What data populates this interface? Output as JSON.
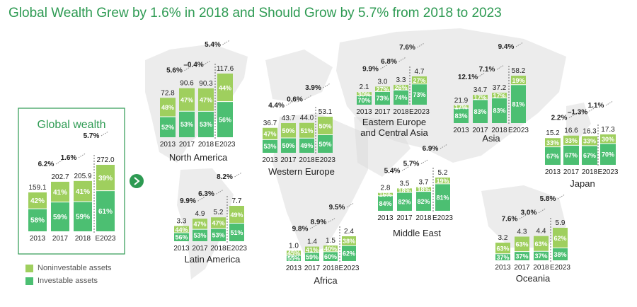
{
  "title": "Global Wealth Grew by 1.6% in 2018 and Should Grow by 5.7% from 2018 to 2023",
  "global_panel_title": "Global wealth",
  "colors": {
    "title": "#2d9a52",
    "investable": "#4cbf72",
    "noninvestable": "#9fcf5e",
    "panel_border": "#2d9a52",
    "map": "#dcdcdc",
    "arrow_button": "#2d9a52",
    "text": "#222222"
  },
  "legend": {
    "noninvestable_label": "Noninvestable assets",
    "investable_label": "Investable assets"
  },
  "chart_data": [
    {
      "type": "bar",
      "name": "Global wealth",
      "categories": [
        "2013",
        "2017",
        "2018",
        "E2023"
      ],
      "totals": [
        "159.1",
        "202.7",
        "205.9",
        "272.0"
      ],
      "series": [
        {
          "name": "Investable assets",
          "values": [
            "58%",
            "59%",
            "59%",
            "61%"
          ]
        },
        {
          "name": "Noninvestable assets",
          "values": [
            "42%",
            "41%",
            "41%",
            "39%"
          ]
        }
      ],
      "growth": [
        "6.2%",
        "1.6%",
        "5.7%"
      ]
    },
    {
      "type": "bar",
      "name": "North America",
      "categories": [
        "2013",
        "2017",
        "2018",
        "E2023"
      ],
      "totals": [
        "72.8",
        "90.6",
        "90.3",
        "117.6"
      ],
      "series": [
        {
          "name": "Investable assets",
          "values": [
            "52%",
            "53%",
            "53%",
            "56%"
          ]
        },
        {
          "name": "Noninvestable assets",
          "values": [
            "48%",
            "47%",
            "47%",
            "44%"
          ]
        }
      ],
      "growth": [
        "5.6%",
        "–0.4%",
        "5.4%"
      ]
    },
    {
      "type": "bar",
      "name": "Western Europe",
      "categories": [
        "2013",
        "2017",
        "2018",
        "E2023"
      ],
      "totals": [
        "36.7",
        "43.7",
        "44.0",
        "53.1"
      ],
      "series": [
        {
          "name": "Investable assets",
          "values": [
            "53%",
            "50%",
            "49%",
            "50%"
          ]
        },
        {
          "name": "Noninvestable assets",
          "values": [
            "47%",
            "50%",
            "51%",
            "50%"
          ]
        }
      ],
      "growth": [
        "4.4%",
        "0.6%",
        "3.9%"
      ]
    },
    {
      "type": "bar",
      "name": "Eastern Europe and Central Asia",
      "label_lines": [
        "Eastern Europe",
        "and Central Asia"
      ],
      "categories": [
        "2013",
        "2017",
        "2018",
        "E2023"
      ],
      "totals": [
        "2.1",
        "3.0",
        "3.3",
        "4.7"
      ],
      "series": [
        {
          "name": "Investable assets",
          "values": [
            "70%",
            "73%",
            "74%",
            "73%"
          ]
        },
        {
          "name": "Noninvestable assets",
          "values": [
            "30%",
            "27%",
            "26%",
            "27%"
          ]
        }
      ],
      "growth": [
        "9.9%",
        "6.8%",
        "7.6%"
      ]
    },
    {
      "type": "bar",
      "name": "Asia",
      "categories": [
        "2013",
        "2017",
        "2018",
        "E2023"
      ],
      "totals": [
        "21.9",
        "34.7",
        "37.2",
        "58.2"
      ],
      "series": [
        {
          "name": "Investable assets",
          "values": [
            "83%",
            "83%",
            "83%",
            "81%"
          ]
        },
        {
          "name": "Noninvestable assets",
          "values": [
            "17%",
            "17%",
            "17%",
            "19%"
          ]
        }
      ],
      "growth": [
        "12.1%",
        "7.1%",
        "9.4%"
      ]
    },
    {
      "type": "bar",
      "name": "Japan",
      "categories": [
        "2013",
        "2017",
        "2018",
        "E2023"
      ],
      "totals": [
        "15.2",
        "16.6",
        "16.3",
        "17.3"
      ],
      "series": [
        {
          "name": "Investable assets",
          "values": [
            "67%",
            "67%",
            "67%",
            "70%"
          ]
        },
        {
          "name": "Noninvestable assets",
          "values": [
            "33%",
            "33%",
            "33%",
            "30%"
          ]
        }
      ],
      "growth": [
        "2.2%",
        "–1.3%",
        "1.1%"
      ]
    },
    {
      "type": "bar",
      "name": "Latin America",
      "categories": [
        "2013",
        "2017",
        "2018",
        "E2023"
      ],
      "totals": [
        "3.3",
        "4.9",
        "5.2",
        "7.7"
      ],
      "series": [
        {
          "name": "Investable assets",
          "values": [
            "56%",
            "53%",
            "53%",
            "51%"
          ]
        },
        {
          "name": "Noninvestable assets",
          "values": [
            "44%",
            "47%",
            "47%",
            "49%"
          ]
        }
      ],
      "growth": [
        "9.9%",
        "6.3%",
        "8.2%"
      ]
    },
    {
      "type": "bar",
      "name": "Middle East",
      "categories": [
        "2013",
        "2017",
        "2018",
        "E2023"
      ],
      "totals": [
        "2.8",
        "3.5",
        "3.7",
        "5.2"
      ],
      "series": [
        {
          "name": "Investable assets",
          "values": [
            "84%",
            "82%",
            "82%",
            "81%"
          ]
        },
        {
          "name": "Noninvestable assets",
          "values": [
            "16%",
            "18%",
            "18%",
            "19%"
          ]
        }
      ],
      "growth": [
        "5.4%",
        "5.7%",
        "6.9%"
      ]
    },
    {
      "type": "bar",
      "name": "Africa",
      "categories": [
        "2013",
        "2017",
        "2018",
        "E2023"
      ],
      "totals": [
        "1.0",
        "1.4",
        "1.5",
        "2.4"
      ],
      "series": [
        {
          "name": "Investable assets",
          "values": [
            "55%",
            "59%",
            "60%",
            "62%"
          ]
        },
        {
          "name": "Noninvestable assets",
          "values": [
            "45%",
            "41%",
            "40%",
            "38%"
          ]
        }
      ],
      "growth": [
        "9.8%",
        "8.9%",
        "9.5%"
      ]
    },
    {
      "type": "bar",
      "name": "Oceania",
      "categories": [
        "2013",
        "2017",
        "2018",
        "E2023"
      ],
      "totals": [
        "3.2",
        "4.3",
        "4.4",
        "5.9"
      ],
      "series": [
        {
          "name": "Investable assets",
          "values": [
            "37%",
            "37%",
            "37%",
            "38%"
          ]
        },
        {
          "name": "Noninvestable assets",
          "values": [
            "63%",
            "63%",
            "63%",
            "62%"
          ]
        }
      ],
      "growth": [
        "7.6%",
        "3.0%",
        "5.8%"
      ]
    }
  ]
}
